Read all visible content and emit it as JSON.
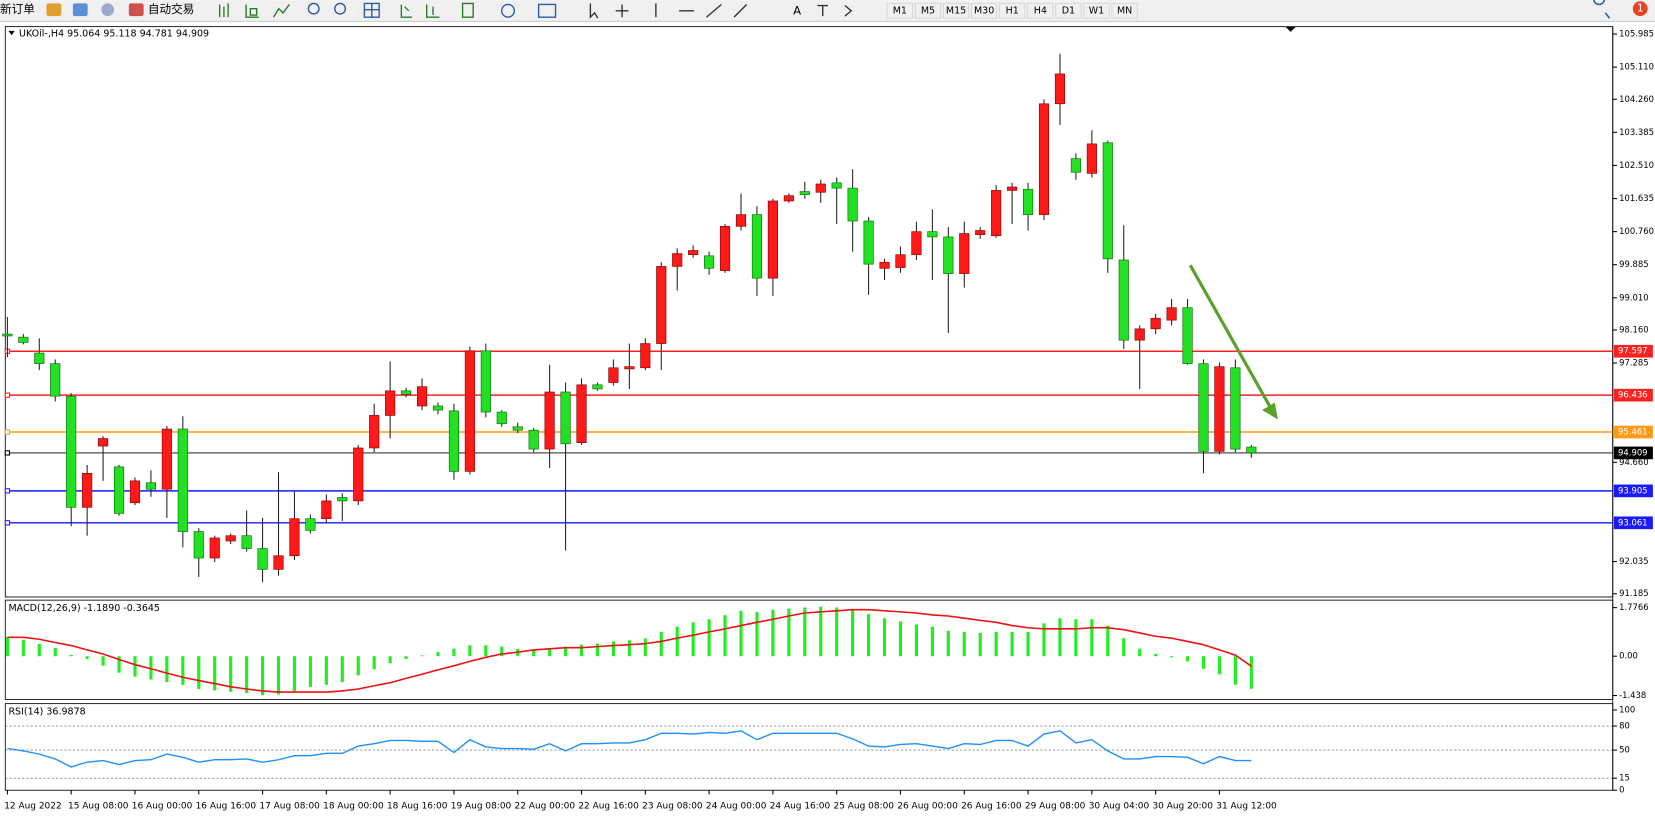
{
  "toolbar": {
    "new_order": "新订单",
    "auto_trade": "自动交易",
    "timeframes": [
      "M1",
      "M5",
      "M15",
      "M30",
      "H1",
      "H4",
      "D1",
      "W1",
      "MN"
    ],
    "alerts": 1
  },
  "chart_data": [
    {
      "type": "candlestick",
      "title": "UKOil-,H4  95.064 95.118 94.781 94.909",
      "categories": [
        "12 Aug 2022",
        null,
        null,
        null,
        "15 Aug 08:00",
        null,
        null,
        null,
        "16 Aug 00:00",
        null,
        null,
        null,
        "16 Aug 16:00",
        null,
        null,
        null,
        "17 Aug 08:00",
        null,
        null,
        null,
        "18 Aug 00:00",
        null,
        null,
        null,
        "18 Aug 16:00",
        null,
        null,
        null,
        "19 Aug 08:00",
        null,
        null,
        null,
        "22 Aug 00:00",
        null,
        null,
        null,
        "22 Aug 16:00",
        null,
        null,
        null,
        "23 Aug 08:00",
        null,
        null,
        null,
        "24 Aug 00:00",
        null,
        null,
        null,
        "24 Aug 16:00",
        null,
        null,
        null,
        "25 Aug 08:00",
        null,
        null,
        null,
        "26 Aug 00:00",
        null,
        null,
        null,
        "26 Aug 16:00",
        null,
        null,
        null,
        "29 Aug 08:00",
        null,
        null,
        null,
        "30 Aug 04:00",
        null,
        null,
        null,
        "30 Aug 20:00",
        null,
        null,
        null,
        "31 Aug 12:00",
        null,
        null
      ],
      "open": [
        98.05,
        97.97,
        97.55,
        97.27,
        96.41,
        93.47,
        95.09,
        94.54,
        93.59,
        94.12,
        93.95,
        95.54,
        92.83,
        92.13,
        92.58,
        92.72,
        92.38,
        91.83,
        92.19,
        93.17,
        93.17,
        93.73,
        93.64,
        95.04,
        95.9,
        96.55,
        96.15,
        96.15,
        96.02,
        94.42,
        97.61,
        95.99,
        95.6,
        95.51,
        95.01,
        96.52,
        95.18,
        96.71,
        96.77,
        97.13,
        97.16,
        97.8,
        99.84,
        100.15,
        100.12,
        99.73,
        100.9,
        101.21,
        99.53,
        101.57,
        101.82,
        101.8,
        102.05,
        101.91,
        101.04,
        99.79,
        99.81,
        100.15,
        100.76,
        100.62,
        99.65,
        100.68,
        100.65,
        101.85,
        101.88,
        101.21,
        104.14,
        102.69,
        102.3,
        103.11,
        100.01,
        97.89,
        98.19,
        98.42,
        98.75,
        97.27,
        94.95,
        97.16,
        95.064
      ],
      "high": [
        98.5,
        98.05,
        97.94,
        97.38,
        96.49,
        94.59,
        95.35,
        94.59,
        94.26,
        94.45,
        95.62,
        95.88,
        92.92,
        92.72,
        92.78,
        93.39,
        93.19,
        94.4,
        93.89,
        93.28,
        93.81,
        93.84,
        95.12,
        96.21,
        97.33,
        96.63,
        96.88,
        96.24,
        96.21,
        97.72,
        97.8,
        96.04,
        95.71,
        95.57,
        97.24,
        96.77,
        96.88,
        96.77,
        97.38,
        97.8,
        97.94,
        99.95,
        100.32,
        100.4,
        100.23,
        100.96,
        101.77,
        101.43,
        101.63,
        101.77,
        102.08,
        102.13,
        102.19,
        102.41,
        101.15,
        100.04,
        100.37,
        101.02,
        101.35,
        100.88,
        101.02,
        100.88,
        101.99,
        102.05,
        102.05,
        104.26,
        105.46,
        102.83,
        103.44,
        103.17,
        100.93,
        98.28,
        98.59,
        98.98,
        98.98,
        97.38,
        97.3,
        97.38,
        95.118
      ],
      "low": [
        97.44,
        97.78,
        97.1,
        96.27,
        92.97,
        92.72,
        94.17,
        93.25,
        93.53,
        93.75,
        93.19,
        92.41,
        91.63,
        92.02,
        92.5,
        92.3,
        91.49,
        91.66,
        92.08,
        92.78,
        93.06,
        93.11,
        93.53,
        94.93,
        95.29,
        96.38,
        96.04,
        95.93,
        94.2,
        94.34,
        95.85,
        95.6,
        95.43,
        94.93,
        94.51,
        92.33,
        95.12,
        96.55,
        96.69,
        96.6,
        97.1,
        97.1,
        99.2,
        100.07,
        99.62,
        99.67,
        100.79,
        99.06,
        99.06,
        101.52,
        101.63,
        101.52,
        100.96,
        100.23,
        99.09,
        99.48,
        99.67,
        100.01,
        99.48,
        98.08,
        99.28,
        100.57,
        100.6,
        100.96,
        100.79,
        101.07,
        103.58,
        102.13,
        102.19,
        99.67,
        97.66,
        96.6,
        98.05,
        98.28,
        97.24,
        94.37,
        94.87,
        94.93,
        94.781
      ],
      "close": [
        98.0,
        97.83,
        97.27,
        96.41,
        93.47,
        94.37,
        95.29,
        93.31,
        94.17,
        93.95,
        95.54,
        92.83,
        92.13,
        92.66,
        92.72,
        92.38,
        91.83,
        92.19,
        93.17,
        92.86,
        93.64,
        93.64,
        95.04,
        95.9,
        96.55,
        96.46,
        96.66,
        96.04,
        94.42,
        97.61,
        95.99,
        95.68,
        95.51,
        95.01,
        96.52,
        95.15,
        96.71,
        96.6,
        97.16,
        97.19,
        97.8,
        99.84,
        100.18,
        100.26,
        99.79,
        100.9,
        101.21,
        99.53,
        101.57,
        101.71,
        101.74,
        102.02,
        101.91,
        101.04,
        99.9,
        99.95,
        100.15,
        100.76,
        100.62,
        99.65,
        100.71,
        100.79,
        101.85,
        101.94,
        101.21,
        104.14,
        104.93,
        102.33,
        103.08,
        100.04,
        97.89,
        98.19,
        98.47,
        98.75,
        97.27,
        94.95,
        97.19,
        95.01,
        94.909
      ],
      "up_color": "#ff1a1a",
      "down_color": "#22e022",
      "ylim": [
        91.1,
        106.18
      ],
      "yticks": [
        105.985,
        {
          "value": 105.11,
          "label": "105.110"
        },
        {
          "value": 104.26,
          "label": "104.260"
        },
        103.385,
        {
          "value": 102.51,
          "label": "102.510"
        },
        101.635,
        {
          "value": 100.76,
          "label": "100.760"
        },
        99.885,
        {
          "value": 99.01,
          "label": "99.010"
        },
        {
          "value": 98.16,
          "label": "98.160"
        },
        97.285,
        {
          "value": 94.66,
          "label": "94.660"
        },
        92.035,
        91.185
      ],
      "levels": [
        {
          "value": 97.597,
          "color": "#ff2020"
        },
        {
          "value": 96.436,
          "color": "#ff2020"
        },
        {
          "value": 95.461,
          "color": "#ff9a1a"
        },
        {
          "value": 94.909,
          "color": "#000000"
        },
        {
          "value": 93.905,
          "color": "#1a1aff"
        },
        {
          "value": 93.061,
          "color": "#1a1aff"
        }
      ]
    },
    {
      "type": "macd",
      "title": "MACD(12,26,9) -1.1890 -0.3645",
      "ylim": [
        -1.58,
        2.05
      ],
      "yticks": [
        1.7766,
        {
          "value": 0,
          "label": "0.00"
        },
        -1.438
      ],
      "series": [
        {
          "style": "histogram",
          "color": "#22ee22",
          "values": [
            0.7,
            0.6,
            0.45,
            0.3,
            0.05,
            -0.1,
            -0.35,
            -0.6,
            -0.75,
            -0.85,
            -0.95,
            -1.05,
            -1.2,
            -1.25,
            -1.3,
            -1.35,
            -1.42,
            -1.4,
            -1.28,
            -1.12,
            -1.05,
            -0.95,
            -0.7,
            -0.48,
            -0.25,
            -0.1,
            0.03,
            0.15,
            0.27,
            0.4,
            0.4,
            0.35,
            0.27,
            0.23,
            0.3,
            0.35,
            0.42,
            0.46,
            0.54,
            0.58,
            0.65,
            0.89,
            1.08,
            1.24,
            1.35,
            1.5,
            1.66,
            1.62,
            1.7,
            1.74,
            1.78,
            1.81,
            1.78,
            1.7,
            1.54,
            1.39,
            1.27,
            1.16,
            1.08,
            0.93,
            0.89,
            0.85,
            0.89,
            0.89,
            0.89,
            1.2,
            1.39,
            1.35,
            1.35,
            1.12,
            0.66,
            0.27,
            0.08,
            -0.04,
            -0.19,
            -0.46,
            -0.66,
            -1.04,
            -1.189
          ]
        },
        {
          "style": "line",
          "color": "#ee1111",
          "values": [
            0.69,
            0.69,
            0.62,
            0.5,
            0.39,
            0.23,
            0.08,
            -0.12,
            -0.31,
            -0.46,
            -0.62,
            -0.77,
            -0.89,
            -1.0,
            -1.12,
            -1.2,
            -1.27,
            -1.31,
            -1.31,
            -1.31,
            -1.31,
            -1.27,
            -1.2,
            -1.08,
            -0.97,
            -0.81,
            -0.66,
            -0.5,
            -0.35,
            -0.19,
            -0.04,
            0.08,
            0.15,
            0.23,
            0.27,
            0.31,
            0.31,
            0.35,
            0.39,
            0.42,
            0.46,
            0.54,
            0.66,
            0.77,
            0.89,
            1.0,
            1.12,
            1.24,
            1.35,
            1.47,
            1.58,
            1.62,
            1.66,
            1.7,
            1.7,
            1.66,
            1.62,
            1.58,
            1.51,
            1.47,
            1.39,
            1.31,
            1.24,
            1.12,
            1.04,
            1.0,
            1.0,
            1.0,
            1.04,
            1.04,
            0.97,
            0.85,
            0.73,
            0.66,
            0.54,
            0.42,
            0.23,
            0.04,
            -0.3645
          ]
        }
      ]
    },
    {
      "type": "line",
      "title": "RSI(14) 36.9878",
      "ylim": [
        0,
        100
      ],
      "yticks": [
        100,
        80,
        50,
        15,
        0
      ],
      "grid": "dashed",
      "series": [
        {
          "color": "#1e8fff",
          "values": [
            52,
            49,
            45,
            39,
            29,
            35,
            37,
            32,
            37,
            38,
            45,
            41,
            35,
            38,
            38,
            39,
            35,
            38,
            43,
            43,
            46,
            46,
            55,
            58,
            62,
            62,
            61,
            61,
            47,
            63,
            54,
            52,
            52,
            51,
            58,
            49,
            58,
            58,
            59,
            59,
            63,
            71,
            71,
            70,
            72,
            71,
            74,
            63,
            71,
            71,
            71,
            71,
            71,
            64,
            55,
            54,
            57,
            58,
            55,
            52,
            58,
            57,
            62,
            62,
            55,
            70,
            74,
            59,
            63,
            49,
            39,
            39,
            42,
            42,
            41,
            33,
            42,
            37,
            36.9878
          ]
        }
      ]
    }
  ]
}
